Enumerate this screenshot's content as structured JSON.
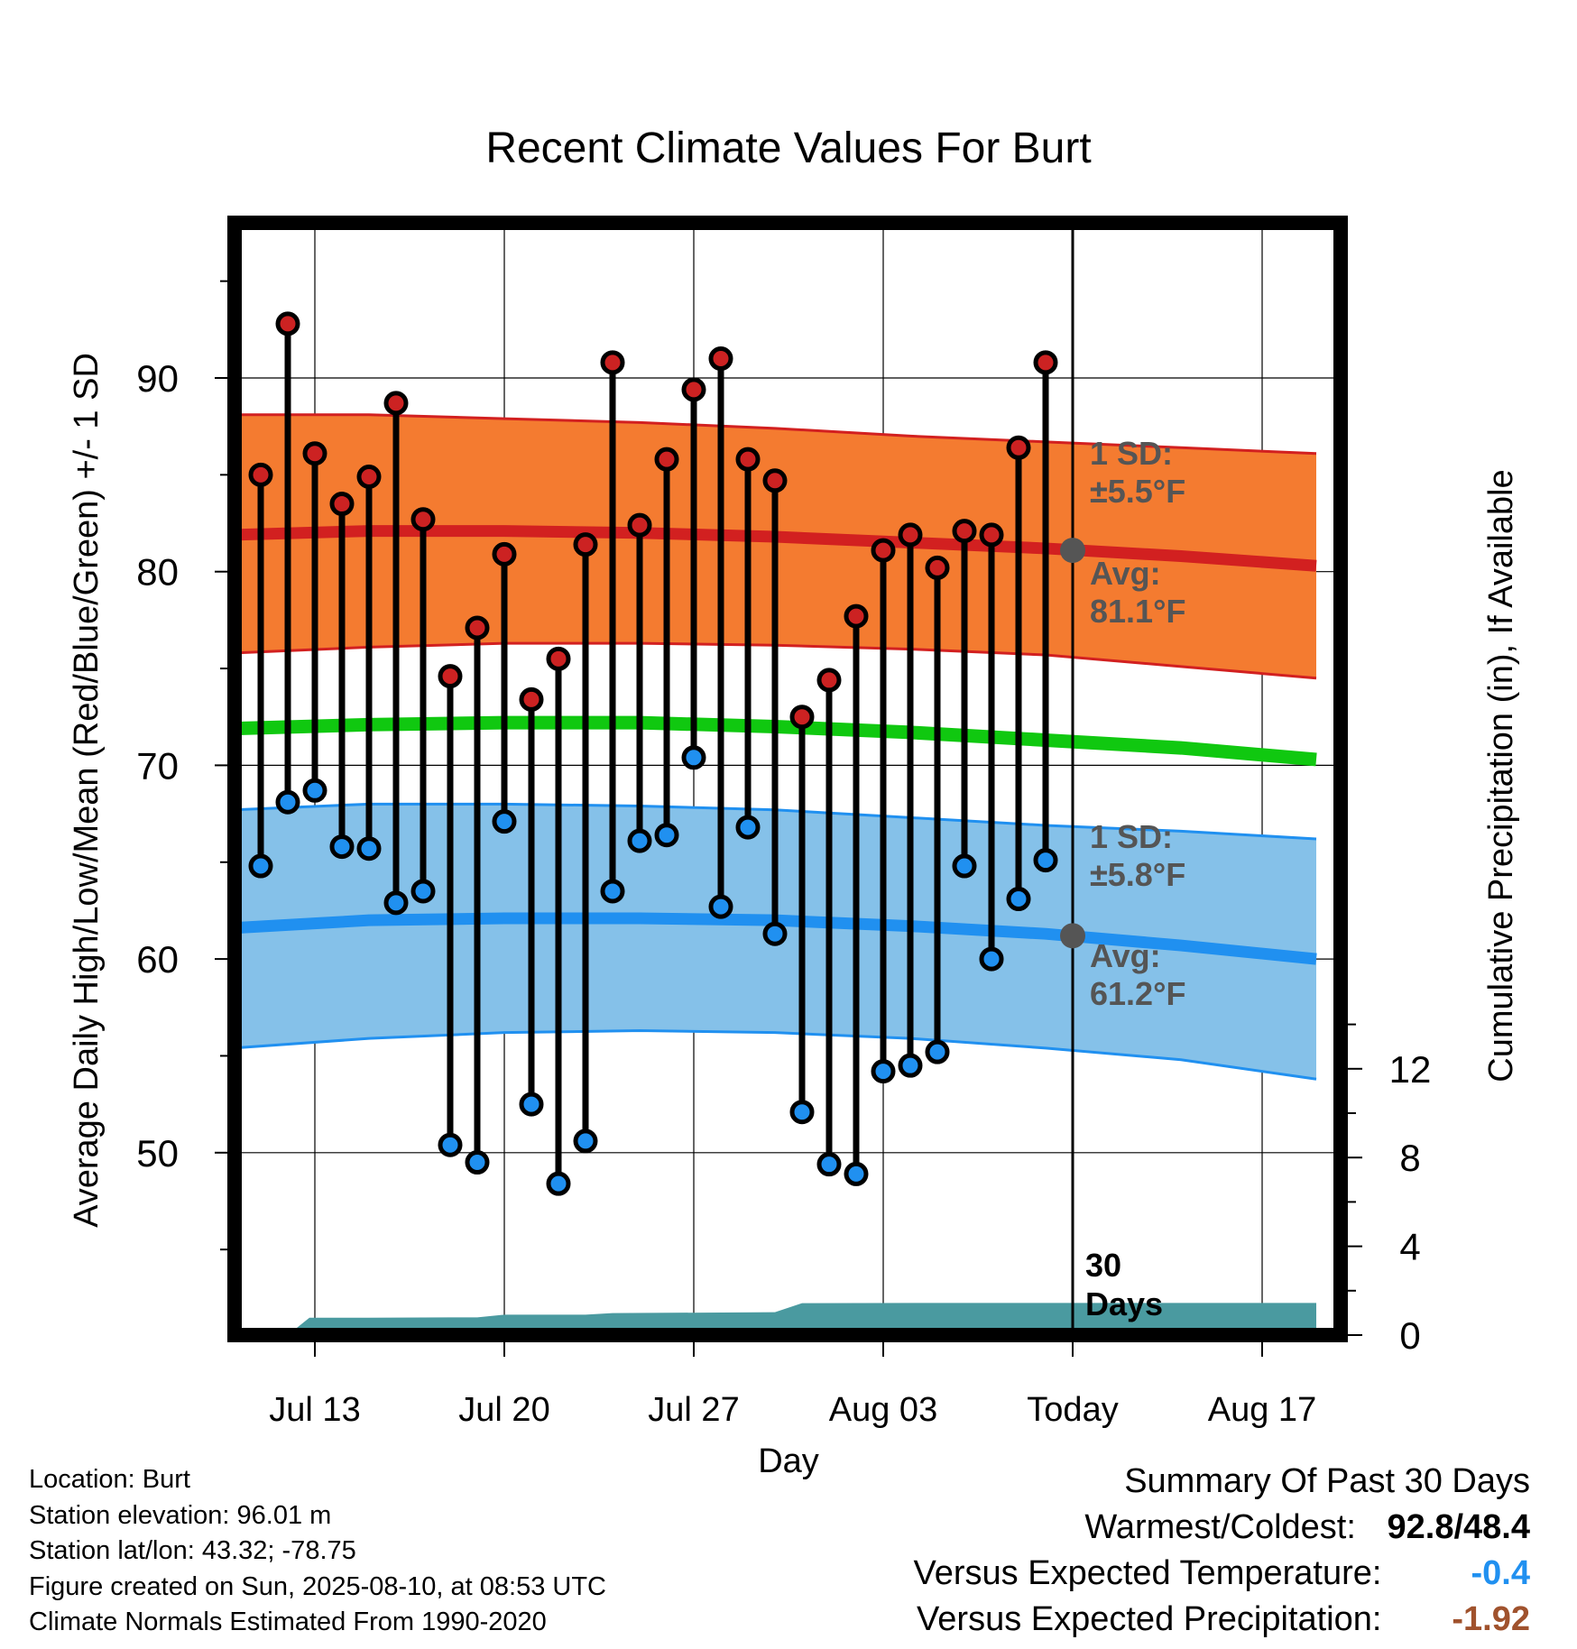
{
  "chart_data": {
    "type": "line",
    "title": "Recent Climate Values For Burt",
    "xlabel": "Day",
    "ylabel_left": "Average Daily High/Low/Mean (Red/Blue/Green) +/- 1 SD",
    "ylabel_right": "Cumulative Precipitation (in), If Available",
    "x_ticks": [
      {
        "date": "2025-07-13",
        "label": "Jul 13"
      },
      {
        "date": "2025-07-20",
        "label": "Jul 20"
      },
      {
        "date": "2025-07-27",
        "label": "Jul 27"
      },
      {
        "date": "2025-08-03",
        "label": "Aug 03"
      },
      {
        "date": "2025-08-10",
        "label": "Today"
      },
      {
        "date": "2025-08-17",
        "label": "Aug 17"
      }
    ],
    "xlim": [
      "2025-07-09.5",
      "2025-08-19.5"
    ],
    "ylim_left": [
      41,
      98
    ],
    "y_ticks_left": [
      50,
      60,
      70,
      80,
      90
    ],
    "y_ticks_right": [
      0,
      4,
      8,
      12
    ],
    "ylim_right_precip": [
      0,
      24
    ],
    "grid": true,
    "today": "2025-08-10",
    "observed": {
      "dates": [
        "2025-07-11",
        "2025-07-12",
        "2025-07-13",
        "2025-07-14",
        "2025-07-15",
        "2025-07-16",
        "2025-07-17",
        "2025-07-18",
        "2025-07-19",
        "2025-07-20",
        "2025-07-21",
        "2025-07-22",
        "2025-07-23",
        "2025-07-24",
        "2025-07-25",
        "2025-07-26",
        "2025-07-27",
        "2025-07-28",
        "2025-07-29",
        "2025-07-30",
        "2025-07-31",
        "2025-08-01",
        "2025-08-02",
        "2025-08-03",
        "2025-08-04",
        "2025-08-05",
        "2025-08-06",
        "2025-08-07",
        "2025-08-08",
        "2025-08-09"
      ],
      "high": [
        85.0,
        92.8,
        86.1,
        83.5,
        84.9,
        88.7,
        82.7,
        74.6,
        77.1,
        80.9,
        73.4,
        75.5,
        81.4,
        90.8,
        82.4,
        85.8,
        89.4,
        91.0,
        85.8,
        84.7,
        72.5,
        74.4,
        77.7,
        81.1,
        81.9,
        80.2,
        82.1,
        81.9,
        86.4,
        90.8
      ],
      "low": [
        64.8,
        68.1,
        68.7,
        65.8,
        65.7,
        62.9,
        63.5,
        50.4,
        49.5,
        67.1,
        52.5,
        48.4,
        50.6,
        63.5,
        66.1,
        66.4,
        70.4,
        62.7,
        66.8,
        61.3,
        52.1,
        49.4,
        48.9,
        54.2,
        54.5,
        55.2,
        64.8,
        60.0,
        63.1,
        65.1
      ]
    },
    "normals": {
      "dates": [
        "2025-07-10",
        "2025-07-15",
        "2025-07-20",
        "2025-07-25",
        "2025-07-30",
        "2025-08-04",
        "2025-08-09",
        "2025-08-14",
        "2025-08-19"
      ],
      "high_mean": [
        81.9,
        82.1,
        82.1,
        82.0,
        81.8,
        81.5,
        81.2,
        80.8,
        80.3
      ],
      "high_upper": [
        88.1,
        88.1,
        87.9,
        87.7,
        87.4,
        87.0,
        86.7,
        86.4,
        86.1
      ],
      "high_lower": [
        75.8,
        76.1,
        76.3,
        76.3,
        76.2,
        76.0,
        75.7,
        75.1,
        74.5
      ],
      "mean_line": [
        71.9,
        72.1,
        72.2,
        72.2,
        72.0,
        71.7,
        71.3,
        70.9,
        70.3
      ],
      "low_mean": [
        61.6,
        62.0,
        62.1,
        62.1,
        62.0,
        61.7,
        61.3,
        60.7,
        60.0
      ],
      "low_upper": [
        67.7,
        68.0,
        68.0,
        67.9,
        67.7,
        67.3,
        66.9,
        66.6,
        66.2
      ],
      "low_lower": [
        55.4,
        55.9,
        56.2,
        56.3,
        56.2,
        55.9,
        55.4,
        54.8,
        53.8
      ]
    },
    "today_markers": {
      "high_avg": 81.1,
      "low_avg": 61.2
    },
    "precip_cumulative": {
      "dates": [
        "2025-07-12",
        "2025-07-12.8",
        "2025-07-15",
        "2025-07-18",
        "2025-07-19",
        "2025-07-20",
        "2025-07-23",
        "2025-07-24",
        "2025-07-30",
        "2025-07-31",
        "2025-08-05",
        "2025-08-19"
      ],
      "values": [
        0,
        0.78,
        0.78,
        0.8,
        0.8,
        0.92,
        0.92,
        0.99,
        1.03,
        1.44,
        1.45,
        1.45
      ]
    },
    "annotations": {
      "high_sd_label": "1 SD:",
      "high_sd_value": "±5.5°F",
      "high_avg_label": "Avg:",
      "high_avg_value": "81.1°F",
      "low_sd_label": "1 SD:",
      "low_sd_value": "±5.8°F",
      "low_avg_label": "Avg:",
      "low_avg_value": "61.2°F",
      "window_line1": "30",
      "window_line2": "Days"
    },
    "colors": {
      "high_band": "#f47b30",
      "high_line": "#d22020",
      "low_band": "#85c1e9",
      "low_line": "#2090f0",
      "mean_line": "#10c810",
      "precip": "#4a9aa0",
      "high_dot": "#cc2222",
      "low_dot": "#2090f0",
      "today_dot": "#555555",
      "annotation": "#555555"
    }
  },
  "info": {
    "location": "Location: Burt",
    "elevation": "Station elevation: 96.01 m",
    "latlon": "Station lat/lon: 43.32; -78.75",
    "created": "Figure created on Sun, 2025-08-10, at 08:53 UTC",
    "normals": "Climate Normals Estimated From 1990-2020"
  },
  "summary": {
    "title": "Summary Of Past 30 Days",
    "warm_cold_label": "Warmest/Coldest:",
    "warm_value": "92.8",
    "cold_value": "48.4",
    "temp_label": "Versus Expected Temperature:",
    "temp_value": "-0.4",
    "temp_color": "#2090f0",
    "precip_label": "Versus Expected Precipitation:",
    "precip_value": "-1.92",
    "precip_color": "#a0522d"
  }
}
